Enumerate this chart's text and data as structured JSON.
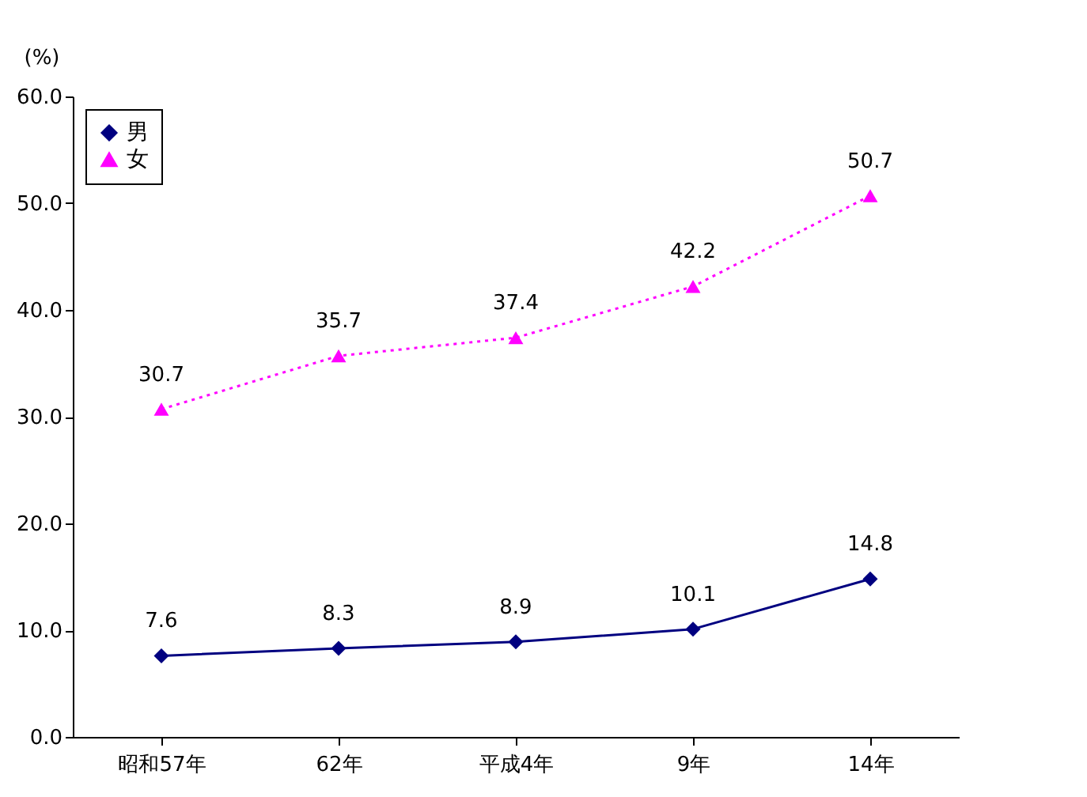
{
  "chart_data": {
    "type": "line",
    "ylabel": "(%)",
    "categories": [
      "昭和57年",
      "62年",
      "平成4年",
      "9年",
      "14年"
    ],
    "series": [
      {
        "name": "男",
        "color": "#000080",
        "marker": "diamond",
        "line_style": "solid",
        "values": [
          7.6,
          8.3,
          8.9,
          10.1,
          14.8
        ]
      },
      {
        "name": "女",
        "color": "#ff00ff",
        "marker": "triangle",
        "line_style": "dotted",
        "values": [
          30.7,
          35.7,
          37.4,
          42.2,
          50.7
        ]
      }
    ],
    "ylim": [
      0,
      60
    ],
    "yticks": [
      {
        "value": 0,
        "label": "0.0"
      },
      {
        "value": 10,
        "label": "10.0"
      },
      {
        "value": 20,
        "label": "20.0"
      },
      {
        "value": 30,
        "label": "30.0"
      },
      {
        "value": 40,
        "label": "40.0"
      },
      {
        "value": 50,
        "label": "50.0"
      },
      {
        "value": 60,
        "label": "60.0"
      }
    ],
    "data_labels": true,
    "grid": false,
    "legend": "top left"
  }
}
